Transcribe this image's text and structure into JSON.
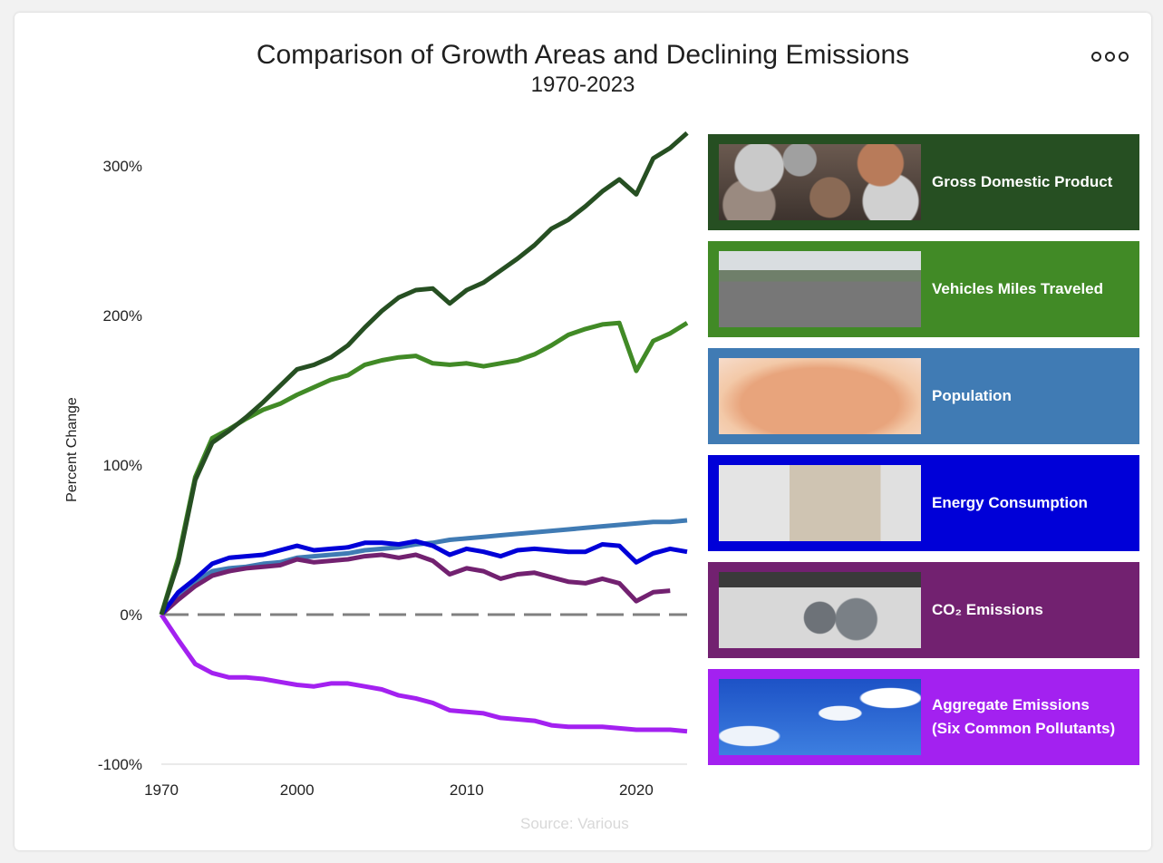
{
  "header": {
    "title": "Comparison of Growth Areas and Declining Emissions",
    "subtitle": "1970-2023",
    "menu_icon": "more-options-icon"
  },
  "footer": {
    "source": "Source: Various"
  },
  "legend": [
    {
      "label": "Gross Domestic Product",
      "label2": "",
      "color": "#264f22",
      "image": "coins-photo"
    },
    {
      "label": "Vehicles Miles Traveled",
      "label2": "",
      "color": "#418a26",
      "image": "traffic-photo"
    },
    {
      "label": "Population",
      "label2": "",
      "color": "#407bb4",
      "image": "baby-face-photo"
    },
    {
      "label": "Energy Consumption",
      "label2": "",
      "color": "#0000d8",
      "image": "power-plug-photo"
    },
    {
      "label": "CO₂ Emissions",
      "label2": "",
      "color": "#722170",
      "image": "exhaust-pipe-photo"
    },
    {
      "label": "Aggregate Emissions",
      "label2": "(Six Common Pollutants)",
      "color": "#a321f0",
      "image": "smokestacks-photo"
    }
  ],
  "chart_data": {
    "type": "line",
    "title": "Comparison of Growth Areas and Declining Emissions",
    "subtitle": "1970-2023",
    "xlabel": "",
    "ylabel": "Percent Change",
    "ylim": [
      -100,
      300
    ],
    "yticks": [
      -100,
      0,
      100,
      200,
      300
    ],
    "ytick_labels": [
      "-100%",
      "0%",
      "100%",
      "200%",
      "300%"
    ],
    "xtick_labels": [
      "1970",
      "2000",
      "2010",
      "2020"
    ],
    "x": [
      1970,
      1980,
      1990,
      1995,
      1996,
      1997,
      1998,
      1999,
      2000,
      2001,
      2002,
      2003,
      2004,
      2005,
      2006,
      2007,
      2008,
      2009,
      2010,
      2011,
      2012,
      2013,
      2014,
      2015,
      2016,
      2017,
      2018,
      2019,
      2020,
      2021,
      2022,
      2023
    ],
    "reference_line": {
      "value": 0,
      "style": "dashed",
      "color": "#808080"
    },
    "grid": false,
    "legend_position": "right",
    "series": [
      {
        "name": "Gross Domestic Product",
        "color": "#264f22",
        "values": [
          0,
          35,
          90,
          115,
          123,
          132,
          142,
          153,
          164,
          167,
          172,
          180,
          192,
          203,
          212,
          217,
          218,
          208,
          217,
          222,
          230,
          238,
          247,
          258,
          264,
          273,
          283,
          291,
          281,
          305,
          312,
          322
        ]
      },
      {
        "name": "Vehicles Miles Traveled",
        "color": "#418a26",
        "values": [
          0,
          38,
          92,
          118,
          124,
          131,
          137,
          141,
          147,
          152,
          157,
          160,
          167,
          170,
          172,
          173,
          168,
          167,
          168,
          166,
          168,
          170,
          174,
          180,
          187,
          191,
          194,
          195,
          163,
          183,
          188,
          195
        ]
      },
      {
        "name": "Population",
        "color": "#407bb4",
        "values": [
          0,
          11,
          22,
          29,
          31,
          32,
          34,
          35,
          38,
          39,
          40,
          41,
          43,
          44,
          45,
          47,
          48,
          50,
          51,
          52,
          53,
          54,
          55,
          56,
          57,
          58,
          59,
          60,
          61,
          62,
          62,
          63
        ]
      },
      {
        "name": "Energy Consumption",
        "color": "#0000d8",
        "values": [
          0,
          15,
          24,
          34,
          38,
          39,
          40,
          43,
          46,
          43,
          44,
          45,
          48,
          48,
          47,
          49,
          46,
          40,
          44,
          42,
          39,
          43,
          44,
          43,
          42,
          42,
          47,
          46,
          35,
          41,
          44,
          42
        ]
      },
      {
        "name": "CO₂ Emissions",
        "color": "#722170",
        "values": [
          0,
          10,
          19,
          26,
          29,
          31,
          32,
          33,
          37,
          35,
          36,
          37,
          39,
          40,
          38,
          40,
          36,
          27,
          31,
          29,
          24,
          27,
          28,
          25,
          22,
          21,
          24,
          21,
          9,
          15,
          16,
          null
        ]
      },
      {
        "name": "Aggregate Emissions (Six Common Pollutants)",
        "color": "#a321f0",
        "values": [
          0,
          -17,
          -33,
          -39,
          -42,
          -42,
          -43,
          -45,
          -47,
          -48,
          -46,
          -46,
          -48,
          -50,
          -54,
          -56,
          -59,
          -64,
          -65,
          -66,
          -69,
          -70,
          -71,
          -74,
          -75,
          -75,
          -75,
          -76,
          -77,
          -77,
          -77,
          -78
        ]
      }
    ]
  }
}
